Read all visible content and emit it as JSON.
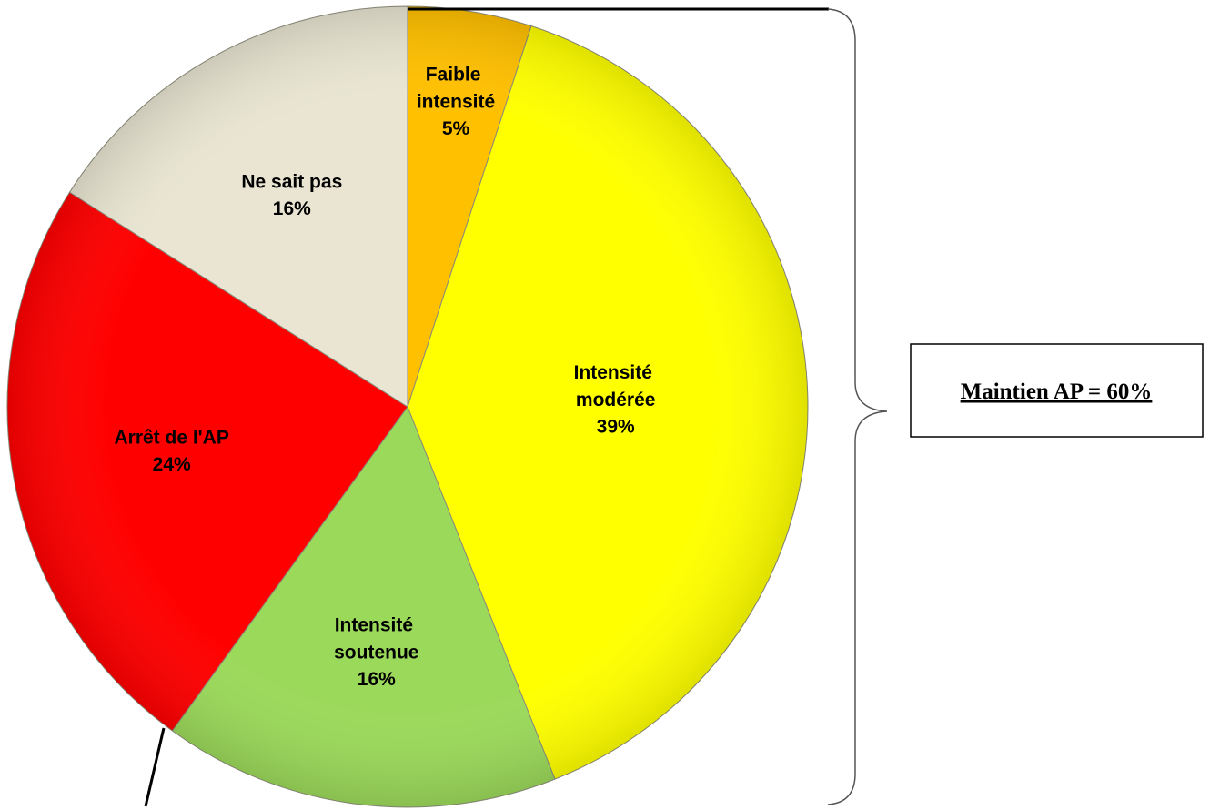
{
  "chart_data": {
    "type": "pie",
    "categories": [
      "Faible intensité",
      "Intensité modérée",
      "Intensité soutenue",
      "Arrêt de l'AP",
      "Ne sait pas"
    ],
    "values": [
      5,
      39,
      16,
      24,
      16
    ],
    "value_labels": [
      "5%",
      "39%",
      "16%",
      "24%",
      "16%"
    ],
    "colors": [
      "#ffc000",
      "#ffff00",
      "#9bd95a",
      "#ff0000",
      "#e9e5d2"
    ],
    "annotation": "Maintien AP = 60%"
  }
}
